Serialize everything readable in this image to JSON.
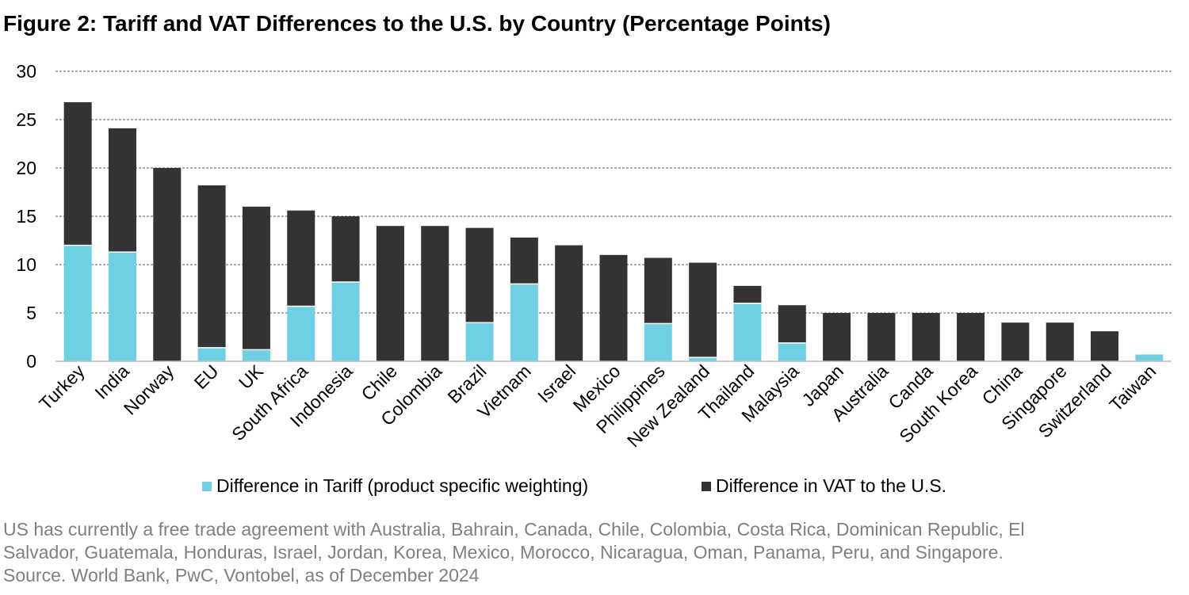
{
  "title": "Figure 2: Tariff and VAT Differences to the U.S. by Country (Percentage Points)",
  "colors": {
    "tariff": "#6fd0e4",
    "vat": "#333333",
    "grid": "#595959",
    "note": "#7f7f7f"
  },
  "legend": {
    "tariff": "Difference in Tariff (product specific weighting)",
    "vat": "Difference in VAT to the U.S."
  },
  "notes": {
    "line1": "US has currently a free trade agreement with Australia, Bahrain, Canada, Chile, Colombia, Costa Rica, Dominican Republic, El",
    "line2": "Salvador, Guatemala, Honduras, Israel, Jordan, Korea, Mexico, Morocco, Nicaragua, Oman, Panama, Peru, and Singapore.",
    "line3": "Source. World Bank, PwC, Vontobel, as of December 2024"
  },
  "chart_data": {
    "type": "bar",
    "stacked": true,
    "categories": [
      "Turkey",
      "India",
      "Norway",
      "EU",
      "UK",
      "South Africa",
      "Indonesia",
      "Chile",
      "Colombia",
      "Brazil",
      "Vietnam",
      "Israel",
      "Mexico",
      "Philippines",
      "New Zealand",
      "Thailand",
      "Malaysia",
      "Japan",
      "Australia",
      "Canda",
      "South Korea",
      "China",
      "Singapore",
      "Switzerland",
      "Taiwan"
    ],
    "series": [
      {
        "name": "Difference in Tariff (product specific weighting)",
        "values": [
          12.0,
          11.3,
          0,
          1.4,
          1.2,
          5.7,
          8.2,
          0,
          0,
          4.0,
          8.0,
          0,
          0,
          3.9,
          0.4,
          6.0,
          1.9,
          0,
          0,
          0,
          0,
          0,
          0,
          0,
          0.7
        ]
      },
      {
        "name": "Difference in VAT to the U.S.",
        "values": [
          14.8,
          12.8,
          20.0,
          16.8,
          14.8,
          9.9,
          6.8,
          14.0,
          14.0,
          9.8,
          4.8,
          12.0,
          11.0,
          6.8,
          9.8,
          1.8,
          3.9,
          5.0,
          5.0,
          5.0,
          5.0,
          4.0,
          4.0,
          3.1,
          0
        ]
      }
    ],
    "ylim": [
      0,
      30
    ],
    "yticks": [
      0,
      5,
      10,
      15,
      20,
      25,
      30
    ],
    "grid": true,
    "legend_position": "bottom"
  }
}
